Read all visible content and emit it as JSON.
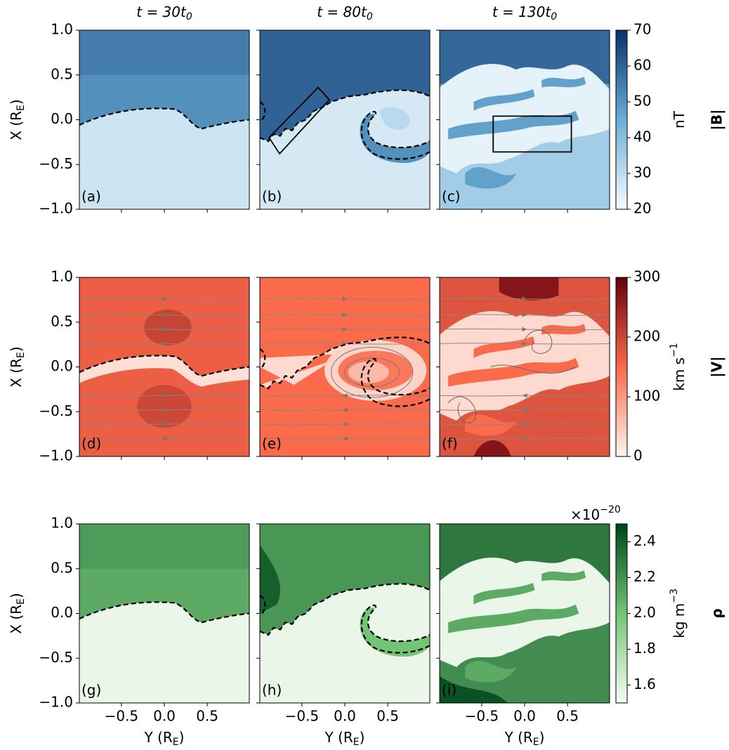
{
  "figure": {
    "columns": [
      {
        "title": [
          "t = 30t",
          "0"
        ]
      },
      {
        "title": [
          "t = 80t",
          "0"
        ]
      },
      {
        "title": [
          "t = 130t",
          "0"
        ]
      }
    ],
    "xlim": [
      -0.99,
      0.99
    ],
    "xticks": [
      {
        "value": -0.5,
        "label": "−0.5"
      },
      {
        "value": 0,
        "label": "0.0"
      },
      {
        "value": 0.5,
        "label": "0.5"
      }
    ],
    "ylim": [
      -1,
      1
    ],
    "yticks": [
      {
        "value": -1,
        "label": "−1.0"
      },
      {
        "value": -0.5,
        "label": "−0.5"
      },
      {
        "value": 0,
        "label": "0.0"
      },
      {
        "value": 0.5,
        "label": "0.5"
      },
      {
        "value": 1,
        "label": "1.0"
      }
    ],
    "xlabel": [
      "Y (R",
      "E",
      ")"
    ],
    "ylabel": [
      "X (R",
      "E",
      ")"
    ],
    "rows": [
      {
        "quantity": "|B|",
        "unit": [
          "nT"
        ],
        "colormap": [
          "#f7fbff",
          "#6baed6",
          "#08306b"
        ],
        "clim": [
          20,
          70
        ],
        "cticks": [
          20,
          30,
          40,
          50,
          60,
          70
        ],
        "panels": [
          "(a)",
          "(b)",
          "(c)"
        ]
      },
      {
        "quantity": "|V|",
        "unit": [
          "km s",
          "−1"
        ],
        "colormap": [
          "#fff5f0",
          "#fb6a4a",
          "#67000d"
        ],
        "clim": [
          0,
          300
        ],
        "cticks": [
          0,
          100,
          200,
          300
        ],
        "panels": [
          "(d)",
          "(e)",
          "(f)"
        ]
      },
      {
        "quantity": "ρ",
        "unit": [
          "kg m",
          "−3"
        ],
        "offset": [
          "×10",
          "−20"
        ],
        "colormap": [
          "#f7fcf5",
          "#74c476",
          "#00441b"
        ],
        "clim": [
          1.5,
          2.5
        ],
        "cticks": [
          1.6,
          1.8,
          {
            "value": 2,
            "label": "2.0"
          },
          2.2,
          2.4
        ],
        "panels": [
          "(g)",
          "(h)",
          "(i)"
        ]
      }
    ]
  }
}
